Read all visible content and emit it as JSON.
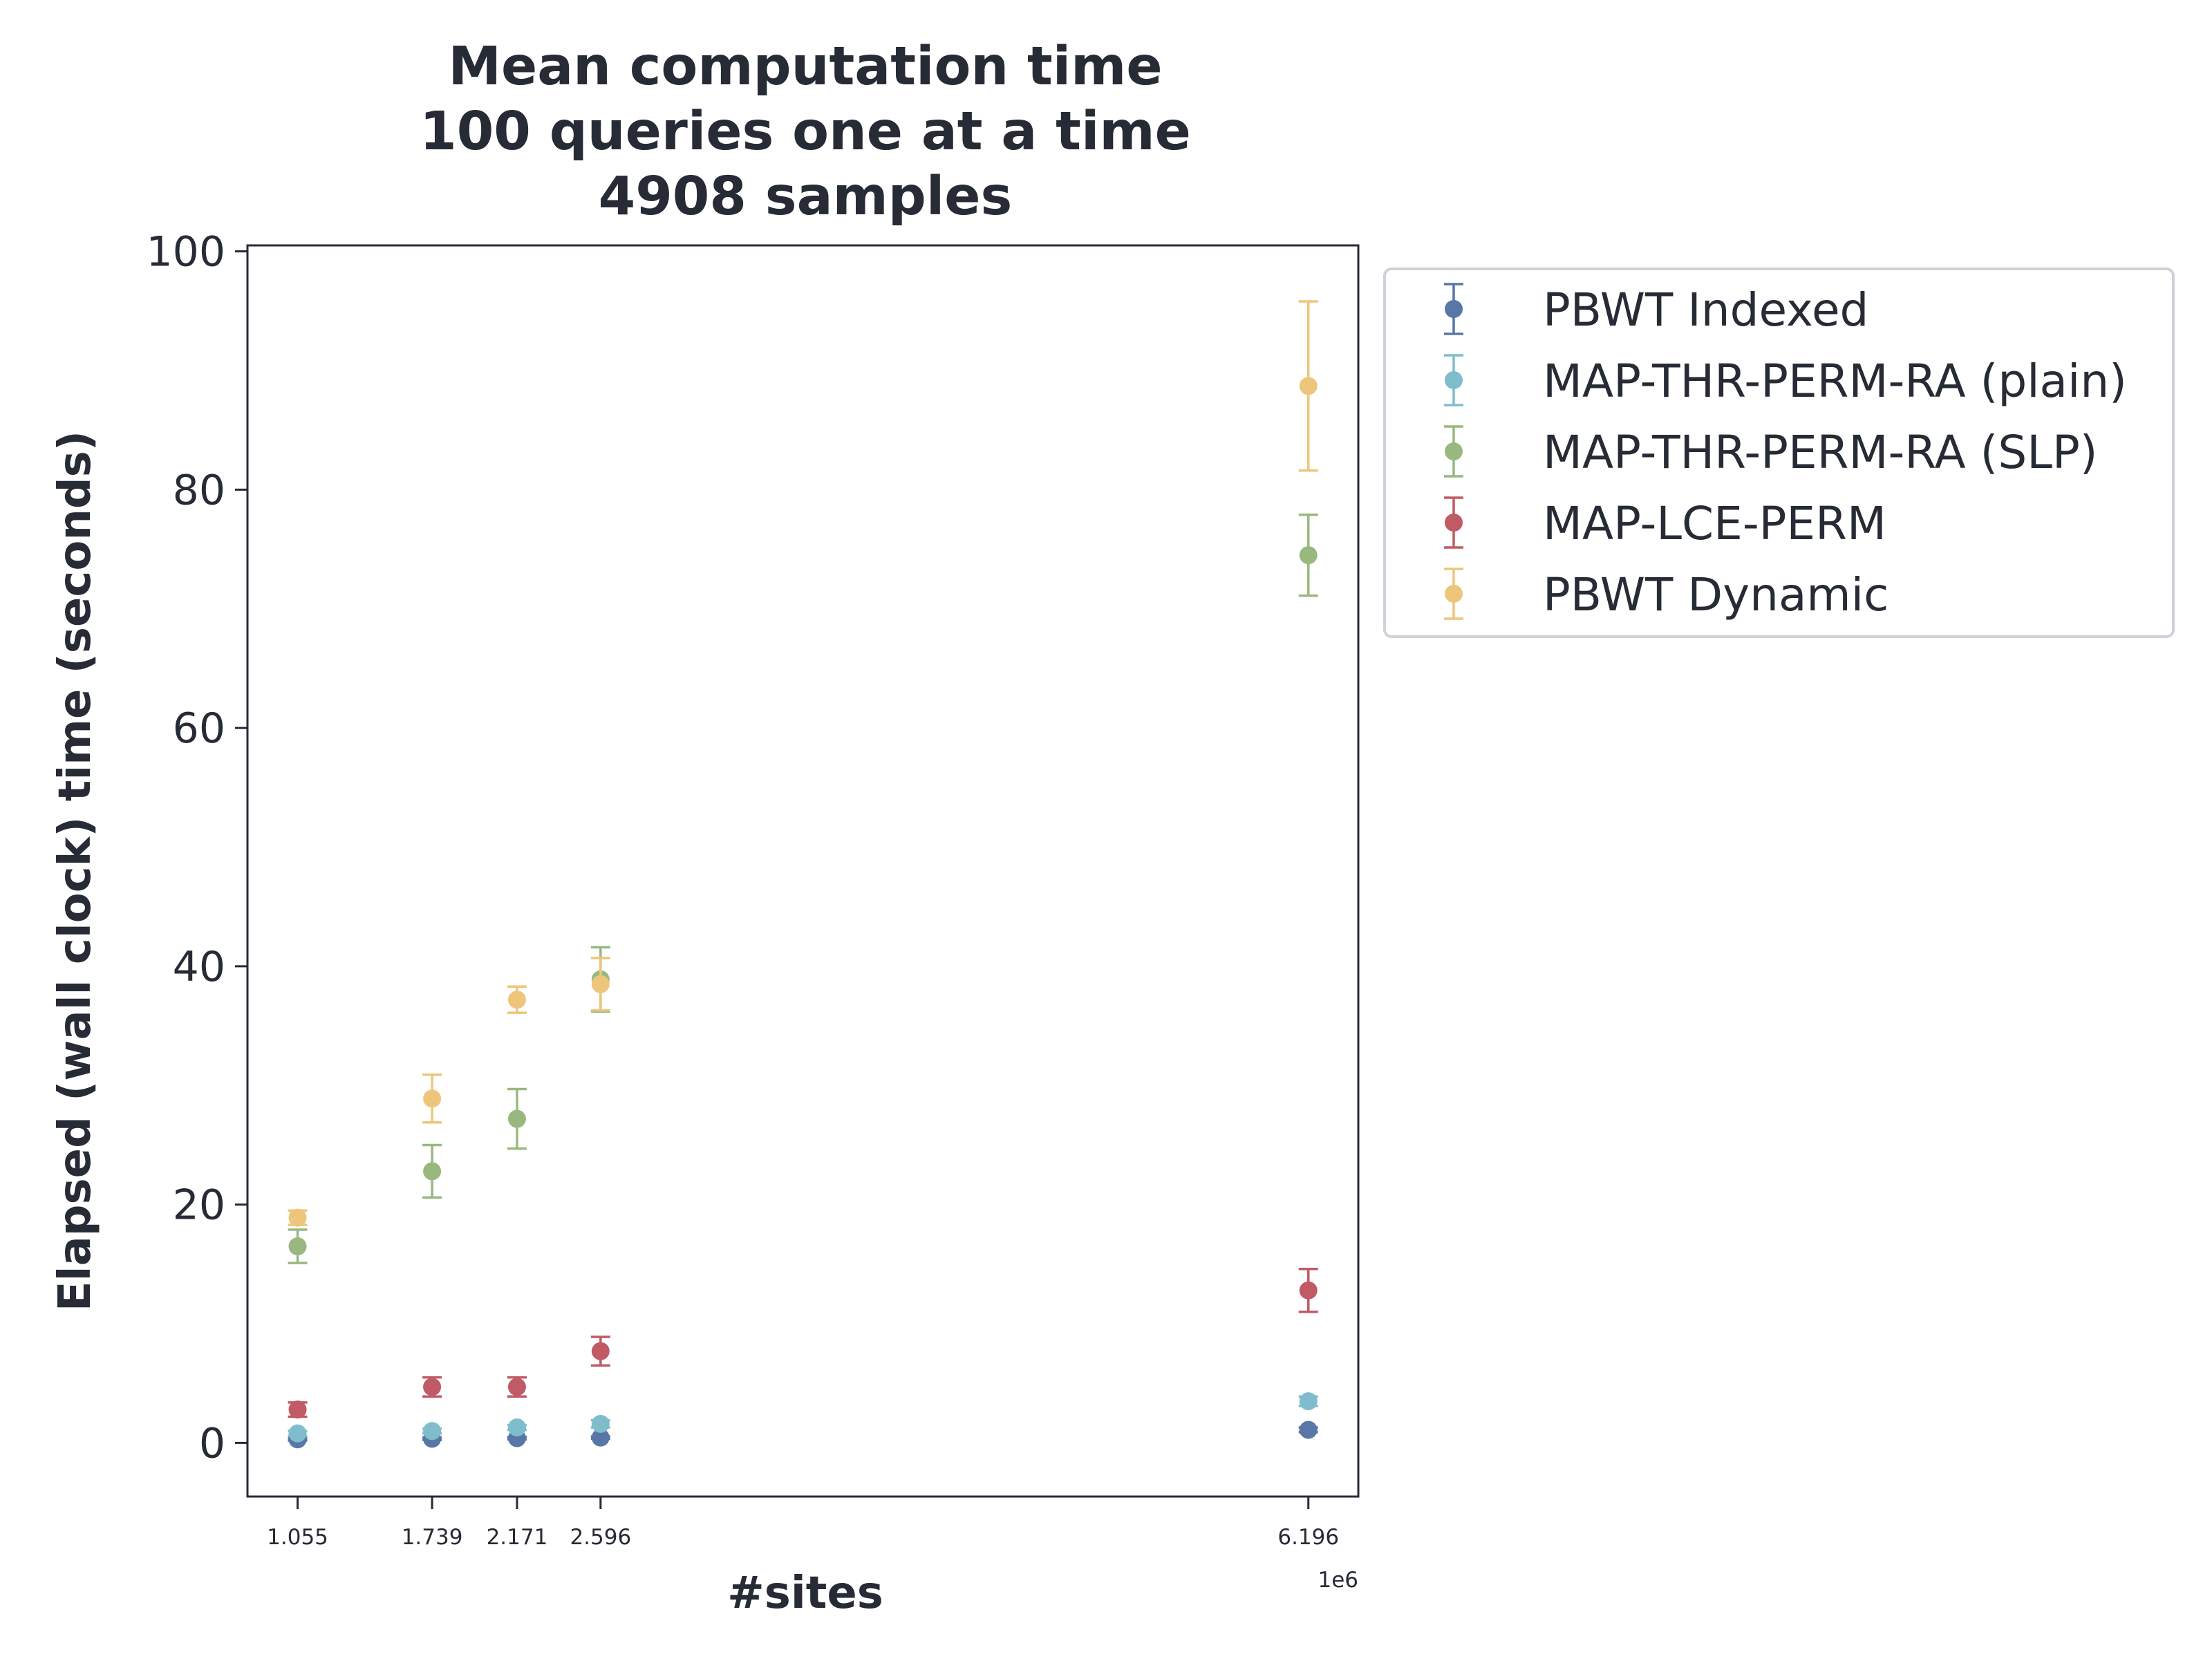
{
  "chart_data": {
    "type": "scatter",
    "title": [
      "Mean computation time",
      "100 queries one at a time",
      "4908 samples"
    ],
    "xlabel": "#sites",
    "ylabel": "Elapsed (wall clock) time (seconds)",
    "x_offset_label": "1e6",
    "x": [
      1.055,
      1.739,
      2.171,
      2.596,
      6.196
    ],
    "x_tick_labels": [
      "1.055",
      "1.739",
      "2.171",
      "2.596",
      "6.196"
    ],
    "xlim": [
      0.8,
      6.45
    ],
    "ylim": [
      -4.5,
      100.5
    ],
    "y_ticks": [
      0,
      20,
      40,
      60,
      80,
      100
    ],
    "y_tick_labels": [
      "0",
      "20",
      "40",
      "60",
      "80",
      "100"
    ],
    "grid": false,
    "legend": "outside-top-right",
    "series": [
      {
        "name": "PBWT Indexed",
        "color": "#5876a8",
        "values": [
          0.3,
          0.35,
          0.4,
          0.45,
          1.1
        ],
        "errors": [
          0.1,
          0.1,
          0.1,
          0.1,
          0.2
        ]
      },
      {
        "name": "MAP-THR-PERM-RA (plain)",
        "color": "#7fbdcd",
        "values": [
          0.8,
          1.0,
          1.3,
          1.6,
          3.5
        ],
        "errors": [
          0.2,
          0.2,
          0.2,
          0.3,
          0.4
        ]
      },
      {
        "name": "MAP-THR-PERM-RA (SLP)",
        "color": "#99b87f",
        "values": [
          16.5,
          22.8,
          27.2,
          38.9,
          74.5
        ],
        "errors": [
          1.4,
          2.2,
          2.5,
          2.7,
          3.4
        ]
      },
      {
        "name": "MAP-LCE-PERM",
        "color": "#c05a65",
        "values": [
          2.8,
          4.7,
          4.7,
          7.7,
          12.8
        ],
        "errors": [
          0.6,
          0.8,
          0.8,
          1.2,
          1.8
        ]
      },
      {
        "name": "PBWT Dynamic",
        "color": "#edc67c",
        "values": [
          18.9,
          28.9,
          37.2,
          38.5,
          88.7
        ],
        "errors": [
          0.6,
          2.0,
          1.1,
          2.2,
          7.1
        ]
      }
    ]
  }
}
